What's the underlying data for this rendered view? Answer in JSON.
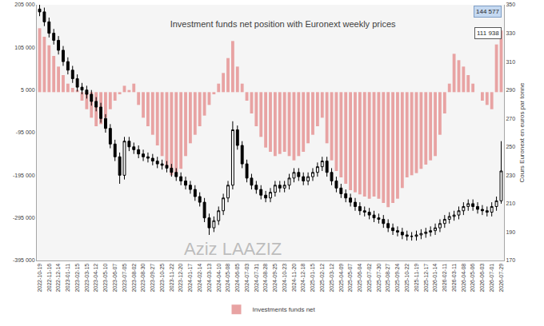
{
  "chart_data": {
    "type": "bar",
    "title": "Investment funds net position with Euronext weekly prices",
    "y2label": "Cours Euronext en euros par tonne",
    "watermark": "Aziz LAAZIZ",
    "annotations": [
      {
        "text": "144 577"
      },
      {
        "text": "111 938"
      }
    ],
    "legend": "bottom",
    "grid": false,
    "categories": [
      "2022-10-19",
      null,
      "2022-11-16",
      null,
      "2022-12-14",
      null,
      "2023-01-11",
      null,
      "2023-02-15",
      null,
      "2023-03-15",
      null,
      "2023-04-12",
      null,
      "2023-05-10",
      null,
      "2023-06-07",
      null,
      "2023-07-05",
      null,
      "2023-08-02",
      null,
      "2023-08-30",
      null,
      "2023-09-27",
      null,
      "2023-10-25",
      null,
      "2023-11-22",
      null,
      "2023-12-20",
      null,
      "2024-01-17",
      null,
      "2024-02-14",
      null,
      "2024-03-13",
      null,
      "2024-04-10",
      null,
      "2024-05-08",
      null,
      "2024-06-05",
      null,
      "2024-07-03",
      null,
      "2024-07-31",
      null,
      "2024-08-28",
      null,
      "2024-09-25",
      null,
      "2024-10-23",
      null,
      "2024-11-20",
      null,
      "2024-12-18",
      null,
      "2025-01-15",
      null,
      "2025-02-12",
      null,
      "2025-03-12",
      null,
      "2025-04-09",
      null,
      "2025-05-07",
      null,
      "2025-06-04",
      null,
      "2025-07-02",
      null,
      "2025-07-30",
      null,
      "2025-08-27",
      null,
      "2025-09-24",
      null,
      "2025-10-22",
      null,
      "2025-11-19",
      null,
      "2025-12-17",
      null,
      "2026-01-14",
      null,
      "2026-02-11",
      null,
      "2026-03-11",
      null,
      "2026-04-08",
      null,
      "2026-05-06",
      null,
      "2026-06-03",
      null,
      "2026-07-01",
      null,
      "2026-07-29"
    ],
    "ylim": [
      -395000,
      205000
    ],
    "yticks": [
      {
        "value": 205000,
        "label": "205 000"
      },
      {
        "value": 105000,
        "label": "105 000"
      },
      {
        "value": 5000,
        "label": "5 000"
      },
      {
        "value": -95000,
        "label": "-95 000"
      },
      {
        "value": -195000,
        "label": "-195 000"
      },
      {
        "value": -295000,
        "label": "-295 000"
      },
      {
        "value": -395000,
        "label": "-395 000"
      }
    ],
    "y2lim": [
      170,
      350
    ],
    "y2ticks": [
      170,
      190,
      210,
      230,
      250,
      270,
      290,
      310,
      330,
      350
    ],
    "series": [
      {
        "name": "Investments funds net",
        "type": "bar",
        "color": "#e8a3a3",
        "values": [
          150000,
          130000,
          110000,
          85000,
          60000,
          40000,
          20000,
          10000,
          5000,
          -20000,
          -40000,
          -60000,
          -80000,
          -75000,
          -60000,
          -40000,
          -20000,
          -5000,
          15000,
          5000,
          20000,
          -30000,
          -60000,
          -80000,
          -100000,
          -125000,
          -150000,
          -175000,
          -195000,
          -190000,
          -180000,
          -150000,
          -120000,
          -100000,
          -80000,
          -55000,
          -30000,
          -5000,
          20000,
          45000,
          80000,
          120000,
          60000,
          20000,
          -20000,
          -50000,
          -80000,
          -105000,
          -130000,
          -140000,
          -150000,
          -145000,
          -140000,
          -150000,
          -160000,
          -150000,
          -140000,
          -120000,
          -100000,
          -80000,
          -60000,
          -120000,
          -160000,
          -185000,
          -200000,
          -215000,
          -230000,
          -235000,
          -240000,
          -245000,
          -250000,
          -245000,
          -250000,
          -260000,
          -270000,
          -260000,
          -250000,
          -225000,
          -200000,
          -195000,
          -190000,
          -180000,
          -170000,
          -160000,
          -150000,
          -100000,
          -50000,
          20000,
          90000,
          75000,
          60000,
          40000,
          20000,
          0,
          -20000,
          -30000,
          -40000,
          111938,
          144577
        ]
      },
      {
        "type": "candlestick",
        "axis": "y2",
        "color": "#000000",
        "open": [
          347,
          345,
          338,
          330,
          325,
          318,
          310,
          304,
          298,
          292,
          290,
          287,
          282,
          278,
          270,
          263,
          252,
          243,
          230,
          254,
          250,
          248,
          245,
          243,
          242,
          240,
          238,
          237,
          235,
          232,
          229,
          226,
          223,
          220,
          215,
          211,
          200,
          193,
          198,
          205,
          214,
          223,
          262,
          251,
          238,
          228,
          223,
          220,
          216,
          214,
          218,
          223,
          221,
          223,
          228,
          232,
          229,
          226,
          229,
          232,
          236,
          240,
          232,
          226,
          221,
          217,
          214,
          211,
          208,
          205,
          204,
          202,
          200,
          199,
          196,
          193,
          191,
          190,
          188,
          187,
          187,
          188,
          189,
          190,
          191,
          193,
          196,
          199,
          201,
          202,
          205,
          208,
          210,
          208,
          206,
          205,
          204,
          208,
          212
        ],
        "high": [
          350,
          348,
          341,
          333,
          328,
          321,
          313,
          307,
          301,
          295,
          293,
          290,
          285,
          281,
          273,
          266,
          255,
          246,
          257,
          257,
          253,
          251,
          248,
          246,
          245,
          243,
          241,
          240,
          238,
          235,
          232,
          229,
          226,
          223,
          218,
          214,
          203,
          201,
          208,
          217,
          226,
          268,
          265,
          254,
          241,
          231,
          226,
          223,
          219,
          221,
          226,
          226,
          226,
          231,
          235,
          235,
          232,
          232,
          235,
          239,
          243,
          243,
          235,
          229,
          224,
          220,
          217,
          214,
          211,
          208,
          207,
          205,
          203,
          202,
          199,
          196,
          194,
          193,
          191,
          190,
          191,
          192,
          193,
          194,
          196,
          199,
          202,
          204,
          205,
          208,
          211,
          213,
          213,
          211,
          209,
          208,
          211,
          215,
          254
        ],
        "low": [
          342,
          335,
          327,
          322,
          315,
          307,
          301,
          295,
          289,
          287,
          284,
          279,
          275,
          267,
          260,
          249,
          240,
          224,
          227,
          247,
          245,
          242,
          240,
          239,
          237,
          235,
          234,
          232,
          229,
          226,
          223,
          220,
          217,
          212,
          208,
          197,
          188,
          190,
          195,
          202,
          211,
          220,
          248,
          235,
          225,
          220,
          217,
          213,
          211,
          211,
          215,
          218,
          218,
          220,
          225,
          226,
          223,
          223,
          226,
          229,
          233,
          229,
          223,
          218,
          214,
          211,
          208,
          205,
          202,
          201,
          199,
          197,
          196,
          193,
          190,
          188,
          187,
          185,
          184,
          184,
          184,
          185,
          186,
          187,
          188,
          190,
          193,
          196,
          198,
          199,
          202,
          205,
          205,
          203,
          202,
          201,
          201,
          205,
          210
        ],
        "close": [
          345,
          338,
          330,
          325,
          318,
          310,
          304,
          298,
          292,
          290,
          287,
          282,
          278,
          270,
          263,
          252,
          243,
          230,
          254,
          250,
          248,
          245,
          243,
          242,
          240,
          238,
          237,
          235,
          232,
          229,
          226,
          223,
          220,
          215,
          211,
          200,
          193,
          198,
          205,
          214,
          223,
          262,
          251,
          238,
          228,
          223,
          220,
          216,
          214,
          218,
          223,
          221,
          223,
          228,
          232,
          229,
          226,
          229,
          232,
          236,
          240,
          232,
          226,
          221,
          217,
          214,
          211,
          208,
          205,
          204,
          202,
          200,
          199,
          196,
          193,
          191,
          190,
          188,
          187,
          187,
          188,
          189,
          190,
          191,
          193,
          196,
          199,
          201,
          202,
          205,
          208,
          210,
          208,
          206,
          205,
          204,
          208,
          212,
          233
        ]
      }
    ]
  }
}
